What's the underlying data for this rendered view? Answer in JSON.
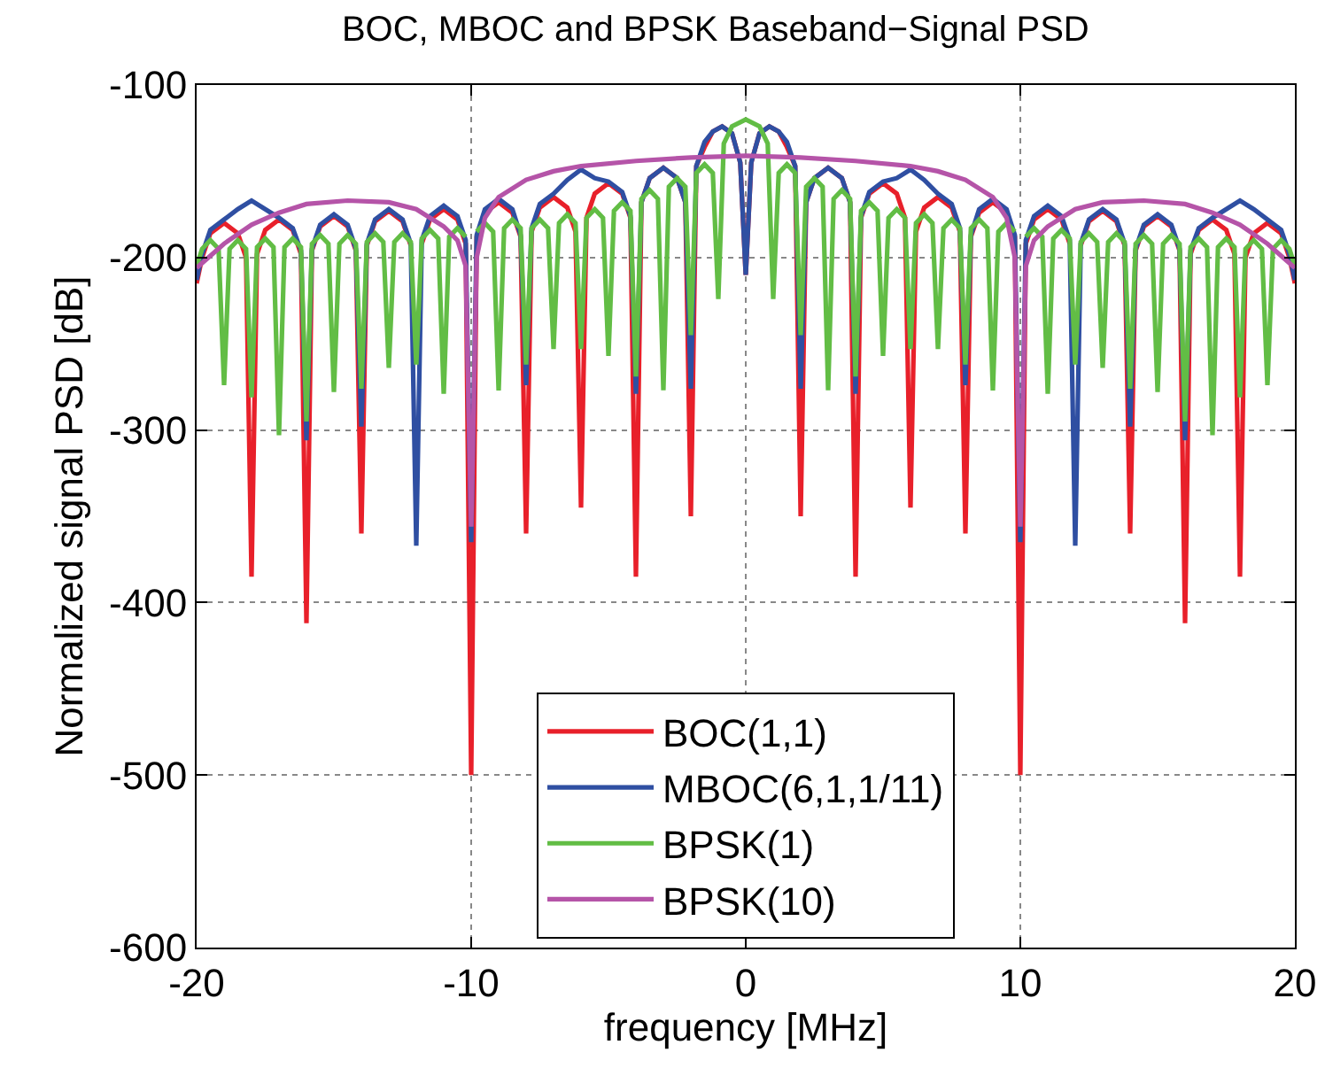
{
  "chart_data": {
    "type": "line",
    "title": "BOC, MBOC and BPSK Baseband−Signal PSD",
    "xlabel": "frequency [MHz]",
    "ylabel": "Normalized signal PSD [dB]",
    "xlim": [
      -20,
      20
    ],
    "xticks": [
      -20,
      -10,
      0,
      10,
      20
    ],
    "ylim": [
      -600,
      -100
    ],
    "yticks": [
      -600,
      -500,
      -400,
      -300,
      -200,
      -100
    ],
    "grid": true,
    "legend": "bottom",
    "series": [
      {
        "name": "BOC(1,1)",
        "color": "#e8202a",
        "x": [
          -20,
          -19.8,
          -19.5,
          -19,
          -18.5,
          -18.2,
          -18,
          -17.8,
          -17.5,
          -17,
          -16.5,
          -16.2,
          -16,
          -15.8,
          -15.5,
          -15,
          -14.5,
          -14.2,
          -14,
          -13.8,
          -13.5,
          -13,
          -12.5,
          -12.2,
          -12,
          -11.8,
          -11.5,
          -11,
          -10.5,
          -10.2,
          -10,
          -9.8,
          -9.5,
          -9,
          -8.5,
          -8.2,
          -8,
          -7.8,
          -7.5,
          -7,
          -6.5,
          -6.2,
          -6,
          -5.8,
          -5.5,
          -5,
          -4.5,
          -4.2,
          -4,
          -3.8,
          -3.5,
          -3,
          -2.5,
          -2.2,
          -2,
          -1.8,
          -1.5,
          -1.2,
          -0.86,
          -0.5,
          -0.2,
          0,
          0.2,
          0.5,
          0.86,
          1.2,
          1.5,
          1.8,
          2,
          2.2,
          2.5,
          3,
          3.5,
          3.8,
          4,
          4.2,
          4.5,
          5,
          5.5,
          5.8,
          6,
          6.2,
          6.5,
          7,
          7.5,
          7.8,
          8,
          8.2,
          8.5,
          9,
          9.5,
          9.8,
          10,
          10.2,
          10.5,
          11,
          11.5,
          11.8,
          12,
          12.2,
          12.5,
          13,
          13.5,
          13.8,
          14,
          14.2,
          14.5,
          15,
          15.5,
          15.8,
          16,
          16.2,
          16.5,
          17,
          17.5,
          17.8,
          18,
          18.2,
          18.5,
          19,
          19.5,
          19.8,
          20
        ],
        "values": [
          -215,
          -200,
          -186,
          -180,
          -186,
          -200,
          -385,
          -198,
          -184,
          -178,
          -184,
          -198,
          -412,
          -196,
          -182,
          -176,
          -182,
          -196,
          -360,
          -193,
          -179,
          -173,
          -179,
          -193,
          null,
          -192,
          -178,
          -172,
          -178,
          -192,
          -500,
          -188,
          -174,
          -168,
          -174,
          -188,
          -360,
          -185,
          -171,
          -165,
          -171,
          -185,
          -345,
          -177,
          -163,
          -157,
          -163,
          -177,
          -385,
          -168,
          -154,
          -148,
          -154,
          -168,
          -350,
          -147,
          -136,
          -127,
          -124,
          -128,
          -145,
          -210,
          -145,
          -128,
          -124,
          -127,
          -136,
          -147,
          -350,
          -168,
          -154,
          -148,
          -154,
          -168,
          -385,
          -177,
          -163,
          -157,
          -163,
          -177,
          -345,
          -185,
          -171,
          -165,
          -171,
          -185,
          -360,
          -188,
          -174,
          -168,
          -174,
          -188,
          -500,
          -192,
          -178,
          -172,
          -178,
          -192,
          null,
          -193,
          -179,
          -173,
          -179,
          -193,
          -360,
          -196,
          -182,
          -176,
          -182,
          -196,
          -412,
          -198,
          -184,
          -178,
          -184,
          -198,
          -385,
          -200,
          -186,
          -180,
          -186,
          -200,
          -215
        ]
      },
      {
        "name": "MBOC(6,1,1/11)",
        "color": "#2f4fa2",
        "x": [
          -20,
          -19.8,
          -19.5,
          -19,
          -18.5,
          -18,
          -17.5,
          -17,
          -16.5,
          -16.2,
          -16,
          -15.8,
          -15.5,
          -15,
          -14.5,
          -14.2,
          -14,
          -13.8,
          -13.5,
          -13,
          -12.5,
          -12.2,
          -12,
          -11.8,
          -11.5,
          -11,
          -10.5,
          -10.2,
          -10,
          -9.8,
          -9.5,
          -9,
          -8.5,
          -8.2,
          -8,
          -7.8,
          -7.5,
          -7,
          -6.5,
          -6,
          -5.5,
          -5,
          -4.5,
          -4.2,
          -4,
          -3.8,
          -3.5,
          -3,
          -2.5,
          -2.2,
          -2,
          -1.8,
          -1.5,
          -1.2,
          -0.86,
          -0.5,
          -0.2,
          0,
          0.2,
          0.5,
          0.86,
          1.2,
          1.5,
          1.8,
          2,
          2.2,
          2.5,
          3,
          3.5,
          3.8,
          4,
          4.2,
          4.5,
          5,
          5.5,
          6,
          6.5,
          7,
          7.5,
          7.8,
          8,
          8.2,
          8.5,
          9,
          9.5,
          9.8,
          10,
          10.2,
          10.5,
          11,
          11.5,
          11.8,
          12,
          12.2,
          12.5,
          13,
          13.5,
          13.8,
          14,
          14.2,
          14.5,
          15,
          15.5,
          15.8,
          16,
          16.2,
          16.5,
          17,
          17.5,
          18,
          18.5,
          19,
          19.5,
          19.8,
          20
        ],
        "values": [
          -213,
          -198,
          -184,
          -178,
          -172,
          -167,
          -172,
          -177,
          -183,
          -196,
          -306,
          -195,
          -181,
          -175,
          -181,
          -195,
          -298,
          -192,
          -178,
          -172,
          -178,
          -192,
          -367,
          -190,
          -176,
          -170,
          -176,
          -190,
          -365,
          -187,
          -172,
          -166,
          -172,
          -187,
          -274,
          -183,
          -169,
          -163,
          -155,
          -149,
          -154,
          -156,
          -162,
          -176,
          -279,
          -168,
          -154,
          -148,
          -154,
          -168,
          -276,
          -147,
          -133,
          -127,
          -124,
          -128,
          -145,
          -210,
          -145,
          -128,
          -124,
          -127,
          -133,
          -147,
          -276,
          -168,
          -154,
          -148,
          -154,
          -168,
          -279,
          -176,
          -162,
          -156,
          -154,
          -149,
          -155,
          -163,
          -169,
          -183,
          -274,
          -187,
          -172,
          -166,
          -172,
          -187,
          -365,
          -190,
          -176,
          -170,
          -176,
          -190,
          -367,
          -192,
          -178,
          -172,
          -178,
          -192,
          -298,
          -195,
          -181,
          -175,
          -181,
          -195,
          -306,
          -196,
          -183,
          -177,
          -172,
          -167,
          -172,
          -178,
          -184,
          -198,
          -213
        ]
      },
      {
        "name": "BPSK(1)",
        "color": "#62bd45",
        "x": [
          -20,
          -19.8,
          -19.5,
          -19.2,
          -19,
          -18.8,
          -18.5,
          -18.2,
          -18,
          -17.8,
          -17.5,
          -17.2,
          -17,
          -16.8,
          -16.5,
          -16.2,
          -16,
          -15.8,
          -15.5,
          -15.2,
          -15,
          -14.8,
          -14.5,
          -14.2,
          -14,
          -13.8,
          -13.5,
          -13.2,
          -13,
          -12.8,
          -12.5,
          -12.2,
          -12,
          -11.8,
          -11.5,
          -11.2,
          -11,
          -10.8,
          -10.5,
          -10.2,
          -10,
          -9.8,
          -9.5,
          -9.2,
          -9,
          -8.8,
          -8.5,
          -8.2,
          -8,
          -7.8,
          -7.5,
          -7.2,
          -7,
          -6.8,
          -6.5,
          -6.2,
          -6,
          -5.8,
          -5.5,
          -5.2,
          -5,
          -4.8,
          -4.5,
          -4.2,
          -4,
          -3.8,
          -3.5,
          -3.2,
          -3,
          -2.8,
          -2.5,
          -2.2,
          -2,
          -1.8,
          -1.5,
          -1.2,
          -1,
          -0.8,
          -0.5,
          0,
          0.5,
          0.8,
          1,
          1.2,
          1.5,
          1.8,
          2,
          2.2,
          2.5,
          2.8,
          3,
          3.2,
          3.5,
          3.8,
          4,
          4.2,
          4.5,
          4.8,
          5,
          5.2,
          5.5,
          5.8,
          6,
          6.2,
          6.5,
          6.8,
          7,
          7.2,
          7.5,
          7.8,
          8,
          8.2,
          8.5,
          8.8,
          9,
          9.2,
          9.5,
          9.8,
          10,
          10.2,
          10.5,
          10.8,
          11,
          11.2,
          11.5,
          11.8,
          12,
          12.2,
          12.5,
          12.8,
          13,
          13.2,
          13.5,
          13.8,
          14,
          14.2,
          14.5,
          14.8,
          15,
          15.2,
          15.5,
          15.8,
          16,
          16.2,
          16.5,
          16.8,
          17,
          17.2,
          17.5,
          17.8,
          18,
          18.2,
          18.5,
          18.8,
          19,
          19.2,
          19.5,
          19.8,
          20
        ],
        "values": [
          -205,
          -195,
          -190,
          -195,
          -274,
          -195,
          -190,
          -195,
          -281,
          -194,
          -189,
          -194,
          -303,
          -194,
          -189,
          -194,
          -295,
          -192,
          -187,
          -192,
          -278,
          -192,
          -187,
          -192,
          -276,
          -191,
          -186,
          -191,
          -264,
          -191,
          -186,
          -191,
          -262,
          -189,
          -184,
          -189,
          -279,
          -188,
          -183,
          -188,
          null,
          -185,
          -180,
          -185,
          -277,
          -183,
          -178,
          -183,
          -262,
          -183,
          -178,
          -183,
          -253,
          -180,
          -175,
          -180,
          -253,
          -177,
          -172,
          -177,
          -257,
          -173,
          -168,
          -173,
          -269,
          -166,
          -161,
          -166,
          -277,
          -159,
          -154,
          -159,
          -245,
          -151,
          -146,
          -151,
          -224,
          -134,
          -124,
          -120,
          -124,
          -134,
          -224,
          -151,
          -146,
          -151,
          -245,
          -159,
          -154,
          -159,
          -277,
          -166,
          -161,
          -166,
          -269,
          -173,
          -168,
          -173,
          -257,
          -177,
          -172,
          -177,
          -253,
          -180,
          -175,
          -180,
          -253,
          -183,
          -178,
          -183,
          -262,
          -183,
          -178,
          -183,
          -277,
          -185,
          -180,
          -185,
          null,
          -188,
          -183,
          -188,
          -279,
          -189,
          -184,
          -189,
          -262,
          -191,
          -186,
          -191,
          -264,
          -191,
          -186,
          -191,
          -276,
          -192,
          -187,
          -192,
          -278,
          -192,
          -187,
          -192,
          -295,
          -194,
          -189,
          -194,
          -303,
          -194,
          -189,
          -194,
          -281,
          -195,
          -190,
          -195,
          -274,
          -195,
          -190,
          -195,
          -205
        ]
      },
      {
        "name": "BPSK(10)",
        "color": "#b554a8",
        "x": [
          -20,
          -19,
          -18,
          -17,
          -16,
          -14.5,
          -13,
          -12,
          -11,
          -10.5,
          -10.2,
          -10,
          -9.8,
          -9.5,
          -9,
          -8,
          -7,
          -6,
          -4,
          -2,
          0,
          2,
          4,
          6,
          7,
          8,
          9,
          9.5,
          9.8,
          10,
          10.2,
          10.5,
          11,
          12,
          13,
          14.5,
          16,
          17,
          18,
          19,
          20
        ],
        "values": [
          -206,
          -192,
          -181,
          -174,
          -169,
          -167,
          -168,
          -172,
          -182,
          -190,
          -205,
          -356,
          -200,
          -177,
          -165,
          -155,
          -150,
          -147,
          -144,
          -142,
          -141,
          -142,
          -144,
          -147,
          -150,
          -155,
          -165,
          -177,
          -200,
          -356,
          -205,
          -190,
          -182,
          -172,
          -168,
          -167,
          -169,
          -174,
          -181,
          -192,
          -206
        ]
      }
    ]
  }
}
